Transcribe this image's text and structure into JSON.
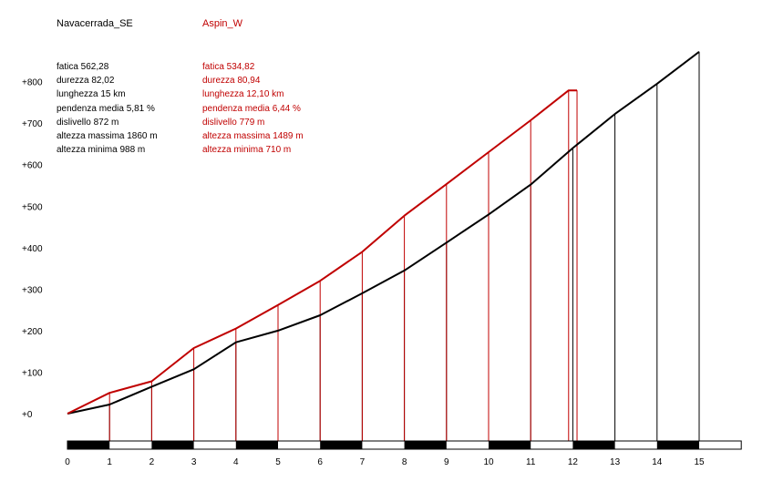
{
  "colors": {
    "climb1": "#000000",
    "climb2": "#c00000"
  },
  "climbs": [
    {
      "name": "Navacerrada_SE",
      "stats": [
        "fatica 562,28",
        "durezza 82,02",
        "lunghezza 15 km",
        "pendenza media 5,81 %",
        "dislivello 872 m",
        "altezza massima 1860 m",
        "altezza minima 988 m"
      ]
    },
    {
      "name": "Aspin_W",
      "stats": [
        "fatica 534,82",
        "durezza 80,94",
        "lunghezza 12,10 km",
        "pendenza media 6,44 %",
        "dislivello 779 m",
        "altezza massima 1489 m",
        "altezza minima 710 m"
      ]
    }
  ],
  "chart_data": {
    "type": "line",
    "title": "",
    "xlabel": "",
    "ylabel": "",
    "x_ticks": [
      0,
      1,
      2,
      3,
      4,
      5,
      6,
      7,
      8,
      9,
      10,
      11,
      12,
      13,
      14,
      15
    ],
    "y_ticks": [
      {
        "value": 0,
        "label": "+0"
      },
      {
        "value": 100,
        "label": "+100"
      },
      {
        "value": 200,
        "label": "+200"
      },
      {
        "value": 300,
        "label": "+300"
      },
      {
        "value": 400,
        "label": "+400"
      },
      {
        "value": 500,
        "label": "+500"
      },
      {
        "value": 600,
        "label": "+600"
      },
      {
        "value": 700,
        "label": "+700"
      },
      {
        "value": 800,
        "label": "+800"
      }
    ],
    "xlim": [
      0,
      16
    ],
    "ylim": [
      -60,
      880
    ],
    "series": [
      {
        "name": "Navacerrada_SE",
        "color": "#000000",
        "x": [
          0,
          1,
          2,
          3,
          4,
          5,
          6,
          7,
          8,
          9,
          10,
          11,
          12,
          13,
          14,
          15
        ],
        "y": [
          0,
          22,
          65,
          107,
          172,
          200,
          237,
          290,
          345,
          412,
          480,
          552,
          640,
          722,
          795,
          872
        ]
      },
      {
        "name": "Aspin_W",
        "color": "#c00000",
        "x": [
          0,
          1,
          2,
          3,
          4,
          5,
          6,
          7,
          8,
          9,
          10,
          11,
          11.9,
          12.1
        ],
        "y": [
          0,
          50,
          78,
          158,
          205,
          262,
          320,
          390,
          477,
          553,
          630,
          707,
          779,
          779
        ]
      }
    ]
  }
}
